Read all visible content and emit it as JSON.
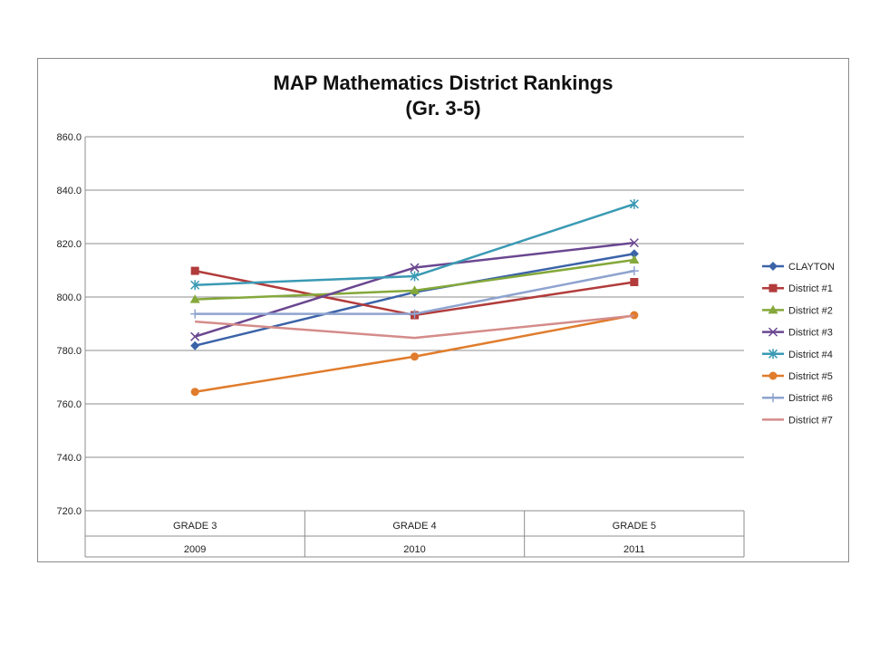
{
  "chart_data": {
    "type": "line",
    "title": "MAP Mathematics District Rankings",
    "subtitle": "(Gr. 3-5)",
    "categories": [
      "GRADE 3",
      "GRADE 4",
      "GRADE 5"
    ],
    "years": [
      "2009",
      "2010",
      "2011"
    ],
    "ylim": [
      720,
      860
    ],
    "yticks": [
      "720.0",
      "740.0",
      "760.0",
      "780.0",
      "800.0",
      "820.0",
      "840.0",
      "860.0"
    ],
    "grid": true,
    "legend_position": "right",
    "series": [
      {
        "name": "CLAYTON",
        "color": "#3b63a8",
        "marker": "diamond",
        "values": [
          781.8,
          801.8,
          816.2
        ]
      },
      {
        "name": "District #1",
        "color": "#b23b3b",
        "marker": "square",
        "values": [
          809.8,
          793.2,
          805.6
        ]
      },
      {
        "name": "District #2",
        "color": "#84a83a",
        "marker": "triangle",
        "values": [
          799.1,
          802.4,
          813.9
        ]
      },
      {
        "name": "District #3",
        "color": "#6a4790",
        "marker": "x",
        "values": [
          785.2,
          811.0,
          820.3
        ]
      },
      {
        "name": "District #4",
        "color": "#3a9ab4",
        "marker": "star",
        "values": [
          804.5,
          807.8,
          834.8
        ]
      },
      {
        "name": "District #5",
        "color": "#e07c2c",
        "marker": "circle",
        "values": [
          764.5,
          777.7,
          793.2
        ]
      },
      {
        "name": "District #6",
        "color": "#8ea3cf",
        "marker": "plus",
        "values": [
          793.7,
          793.7,
          809.8
        ]
      },
      {
        "name": "District #7",
        "color": "#d48c8a",
        "marker": "none",
        "values": [
          790.8,
          784.7,
          793.0
        ]
      }
    ]
  }
}
